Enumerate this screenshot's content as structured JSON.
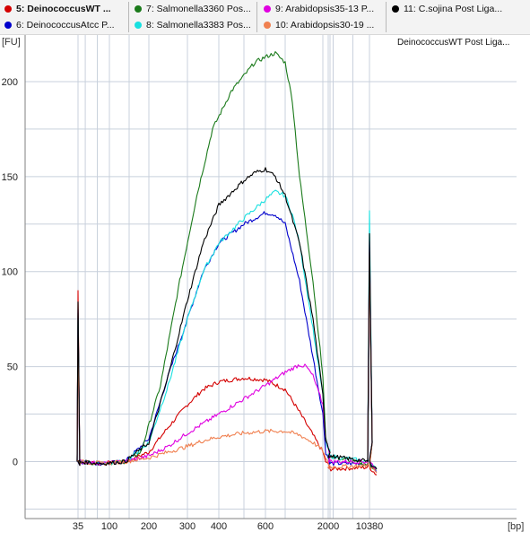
{
  "legend": [
    {
      "label": "5: DeinococcusWT ...",
      "color": "#d40000",
      "bold": true
    },
    {
      "label": "6: DeinococcusAtcc P...",
      "color": "#0000cc",
      "bold": false
    },
    {
      "label": "7: Salmonella3360 Pos...",
      "color": "#1a7a1a",
      "bold": false
    },
    {
      "label": "8: Salmonella3383 Pos...",
      "color": "#18e0e0",
      "bold": false
    },
    {
      "label": "9: Arabidopsis35-13 P...",
      "color": "#e000e0",
      "bold": false
    },
    {
      "label": "10: Arabidopsis30-19 ...",
      "color": "#f08050",
      "bold": false
    },
    {
      "label": "11: C.sojina Post Liga...",
      "color": "#000000",
      "bold": false
    }
  ],
  "chart": {
    "caption": "DeinococcusWT Post Liga...",
    "y_unit": "[FU]",
    "x_unit": "[bp]"
  },
  "chart_data": {
    "type": "line",
    "xlabel": "[bp]",
    "ylabel": "[FU]",
    "ylim": [
      -30,
      225
    ],
    "y_ticks": [
      0,
      50,
      100,
      150,
      200
    ],
    "x_ticks": [
      "35",
      "100",
      "200",
      "300",
      "400",
      "600",
      "2000",
      "10380"
    ],
    "grid": true,
    "series": [
      {
        "name": "5: DeinococcusWT ...",
        "color": "#d40000",
        "points": [
          [
            35,
            0
          ],
          [
            85,
            -1
          ],
          [
            140,
            0
          ],
          [
            200,
            5
          ],
          [
            250,
            18
          ],
          [
            300,
            30
          ],
          [
            350,
            38
          ],
          [
            400,
            42
          ],
          [
            500,
            44
          ],
          [
            600,
            43
          ],
          [
            700,
            38
          ],
          [
            800,
            26
          ],
          [
            900,
            14
          ],
          [
            1000,
            5
          ],
          [
            1200,
            0
          ],
          [
            1500,
            -3
          ],
          [
            2000,
            -4
          ],
          [
            10380,
            -3
          ],
          [
            11000,
            -7
          ]
        ]
      },
      {
        "name": "6: DeinococcusAtcc P...",
        "color": "#0000cc",
        "points": [
          [
            35,
            0
          ],
          [
            85,
            -1
          ],
          [
            140,
            0
          ],
          [
            200,
            12
          ],
          [
            250,
            45
          ],
          [
            300,
            75
          ],
          [
            350,
            100
          ],
          [
            400,
            115
          ],
          [
            500,
            125
          ],
          [
            600,
            131
          ],
          [
            650,
            130
          ],
          [
            700,
            125
          ],
          [
            800,
            95
          ],
          [
            900,
            55
          ],
          [
            1000,
            25
          ],
          [
            1200,
            5
          ],
          [
            1500,
            0
          ],
          [
            2000,
            -1
          ],
          [
            10380,
            -1
          ],
          [
            11000,
            -5
          ]
        ]
      },
      {
        "name": "7: Salmonella3360 Pos...",
        "color": "#1a7a1a",
        "points": [
          [
            35,
            0
          ],
          [
            85,
            -1
          ],
          [
            140,
            0
          ],
          [
            180,
            5
          ],
          [
            230,
            40
          ],
          [
            280,
            95
          ],
          [
            330,
            140
          ],
          [
            380,
            175
          ],
          [
            450,
            195
          ],
          [
            550,
            210
          ],
          [
            600,
            213
          ],
          [
            650,
            215
          ],
          [
            700,
            210
          ],
          [
            750,
            190
          ],
          [
            800,
            150
          ],
          [
            900,
            95
          ],
          [
            1000,
            45
          ],
          [
            1200,
            12
          ],
          [
            1500,
            5
          ],
          [
            2000,
            3
          ],
          [
            10380,
            -2
          ],
          [
            11000,
            -4
          ]
        ]
      },
      {
        "name": "8: Salmonella3383 Pos...",
        "color": "#18e0e0",
        "points": [
          [
            35,
            0
          ],
          [
            85,
            -1
          ],
          [
            140,
            0
          ],
          [
            200,
            10
          ],
          [
            250,
            40
          ],
          [
            300,
            75
          ],
          [
            350,
            100
          ],
          [
            400,
            115
          ],
          [
            500,
            128
          ],
          [
            600,
            138
          ],
          [
            650,
            142
          ],
          [
            700,
            140
          ],
          [
            750,
            130
          ],
          [
            800,
            115
          ],
          [
            900,
            70
          ],
          [
            1000,
            35
          ],
          [
            1200,
            10
          ],
          [
            1500,
            5
          ],
          [
            2000,
            3
          ],
          [
            10380,
            0
          ],
          [
            11000,
            -3
          ]
        ]
      },
      {
        "name": "9: Arabidopsis35-13 P...",
        "color": "#e000e0",
        "points": [
          [
            35,
            0
          ],
          [
            85,
            -1
          ],
          [
            140,
            0
          ],
          [
            200,
            3
          ],
          [
            250,
            8
          ],
          [
            300,
            15
          ],
          [
            350,
            20
          ],
          [
            400,
            25
          ],
          [
            500,
            33
          ],
          [
            600,
            40
          ],
          [
            700,
            47
          ],
          [
            800,
            51
          ],
          [
            850,
            50
          ],
          [
            900,
            45
          ],
          [
            1000,
            30
          ],
          [
            1200,
            12
          ],
          [
            1500,
            3
          ],
          [
            2000,
            0
          ],
          [
            10380,
            0
          ],
          [
            11000,
            -4
          ]
        ]
      },
      {
        "name": "10: Arabidopsis30-19 ...",
        "color": "#f08050",
        "points": [
          [
            35,
            0
          ],
          [
            85,
            -1
          ],
          [
            140,
            0
          ],
          [
            200,
            2
          ],
          [
            250,
            5
          ],
          [
            300,
            8
          ],
          [
            350,
            11
          ],
          [
            400,
            13
          ],
          [
            500,
            15
          ],
          [
            600,
            16
          ],
          [
            700,
            16
          ],
          [
            800,
            14
          ],
          [
            900,
            10
          ],
          [
            1000,
            6
          ],
          [
            1200,
            1
          ],
          [
            1500,
            -2
          ],
          [
            2000,
            -3
          ],
          [
            10380,
            -2
          ],
          [
            11000,
            -6
          ]
        ]
      },
      {
        "name": "11: C.sojina Post Liga...",
        "color": "#000000",
        "points": [
          [
            35,
            0
          ],
          [
            85,
            -1
          ],
          [
            140,
            0
          ],
          [
            200,
            10
          ],
          [
            250,
            45
          ],
          [
            300,
            85
          ],
          [
            350,
            115
          ],
          [
            400,
            135
          ],
          [
            500,
            148
          ],
          [
            550,
            152
          ],
          [
            600,
            154
          ],
          [
            650,
            150
          ],
          [
            700,
            140
          ],
          [
            800,
            115
          ],
          [
            900,
            75
          ],
          [
            1000,
            35
          ],
          [
            1200,
            12
          ],
          [
            1500,
            5
          ],
          [
            2000,
            3
          ],
          [
            10380,
            0
          ],
          [
            11000,
            -4
          ]
        ]
      }
    ],
    "peaks": {
      "x": [
        35,
        10380
      ],
      "heights": {
        "5": 90,
        "6": 80,
        "7": 78,
        "8": 75,
        "9": 70,
        "10": 65,
        "11": 84
      },
      "end_heights": {
        "5": 110,
        "6": 112,
        "7": 114,
        "8": 132,
        "9": 116,
        "10": 110,
        "11": 120
      }
    }
  }
}
